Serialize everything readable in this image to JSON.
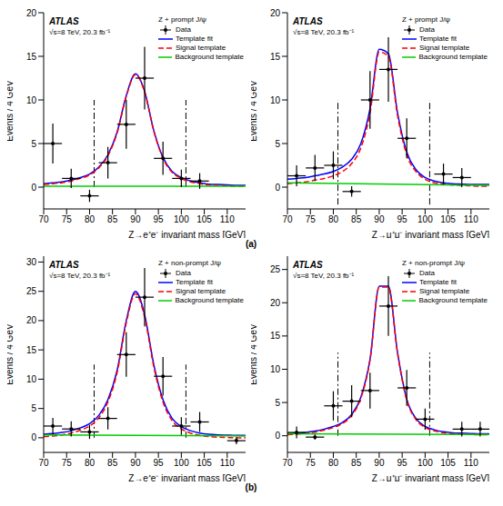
{
  "panel_labels": [
    "(a)",
    "(b)"
  ],
  "chart_data": [
    {
      "type": "line",
      "title": "Z + prompt J/ψ",
      "annotations": [
        "ATLAS",
        "√s=8 TeV, 20.3 fb⁻¹"
      ],
      "x_label": "Z→e⁺e⁻ invariant mass [GeV]",
      "y_label": "Events / 4 GeV",
      "xlim": [
        70,
        114
      ],
      "xticks": [
        70,
        75,
        80,
        85,
        90,
        95,
        100,
        105,
        110
      ],
      "ylim": [
        -2.5,
        20
      ],
      "yticks": [
        0,
        5,
        10,
        15,
        20
      ],
      "legend": "upper right",
      "bin_width": 4,
      "window": {
        "x": [
          81,
          101
        ],
        "y": [
          0,
          10
        ]
      },
      "series": [
        {
          "name": "Data",
          "type": "scatter",
          "color": "#000000",
          "marker": "circle",
          "x": [
            72,
            76,
            80,
            84,
            88,
            92,
            96,
            100,
            104
          ],
          "values": [
            5,
            1,
            -1,
            2.8,
            7.2,
            12.5,
            3.3,
            1,
            0.7
          ],
          "errors": [
            2.3,
            1.1,
            0.7,
            1.8,
            2.8,
            3.6,
            1.9,
            1,
            0.9
          ]
        },
        {
          "name": "Template fit",
          "type": "line",
          "color": "#0000ff",
          "line_style": "solid",
          "x": [
            70,
            72,
            74,
            76,
            78,
            80,
            82,
            84,
            86,
            88,
            90,
            92,
            94,
            96,
            98,
            100,
            102,
            104,
            106,
            108,
            110,
            112,
            114
          ],
          "values": [
            0.4,
            0.5,
            0.6,
            0.8,
            1.1,
            1.5,
            2.3,
            3.7,
            6.3,
            10.5,
            13,
            11,
            6.5,
            3.4,
            1.8,
            1.1,
            0.7,
            0.5,
            0.35,
            0.3,
            0.25,
            0.2,
            0.2
          ]
        },
        {
          "name": "Signal template",
          "type": "line",
          "color": "#ff0000",
          "line_style": "dashed",
          "x": [
            70,
            72,
            74,
            76,
            78,
            80,
            82,
            84,
            86,
            88,
            90,
            92,
            94,
            96,
            98,
            100,
            102,
            104,
            106,
            108,
            110,
            112,
            114
          ],
          "values": [
            0.3,
            0.4,
            0.5,
            0.7,
            1,
            1.4,
            2.2,
            3.6,
            6.2,
            10.4,
            12.9,
            10.9,
            6.4,
            3.3,
            1.7,
            1,
            0.6,
            0.4,
            0.25,
            0.2,
            0.15,
            0.1,
            0.1
          ]
        },
        {
          "name": "Background template",
          "type": "line",
          "color": "#00cc00",
          "line_style": "solid",
          "x": [
            70,
            114
          ],
          "values": [
            0.1,
            0.1
          ]
        }
      ]
    },
    {
      "type": "line",
      "title": "Z + prompt J/ψ",
      "annotations": [
        "ATLAS",
        "√s=8 TeV, 20.3 fb⁻¹"
      ],
      "x_label": "Z→μ⁺μ⁻ invariant mass [GeV]",
      "y_label": "Events / 4 GeV",
      "xlim": [
        70,
        114
      ],
      "xticks": [
        70,
        75,
        80,
        85,
        90,
        95,
        100,
        105,
        110
      ],
      "ylim": [
        -2.5,
        20
      ],
      "yticks": [
        0,
        5,
        10,
        15,
        20
      ],
      "legend": "upper right",
      "bin_width": 4,
      "window": {
        "x": [
          81,
          101
        ],
        "y": [
          -2,
          10
        ]
      },
      "series": [
        {
          "name": "Data",
          "type": "scatter",
          "color": "#000000",
          "marker": "circle",
          "x": [
            72,
            76,
            80,
            84,
            88,
            92,
            96,
            104,
            108
          ],
          "values": [
            1.3,
            2.2,
            2.5,
            -0.5,
            10,
            13.5,
            5.6,
            1.5,
            1.1
          ],
          "errors": [
            1.2,
            1.5,
            1.6,
            0.6,
            3.3,
            3.7,
            2.3,
            1.2,
            1.1
          ]
        },
        {
          "name": "Template fit",
          "type": "line",
          "color": "#0000ff",
          "line_style": "solid",
          "x": [
            70,
            72,
            74,
            76,
            78,
            80,
            82,
            84,
            86,
            88,
            90,
            92,
            94,
            96,
            98,
            100,
            102,
            104,
            106,
            108,
            110,
            112,
            114
          ],
          "values": [
            0.9,
            1,
            1.1,
            1.3,
            1.5,
            1.8,
            2.3,
            3.2,
            5,
            9,
            15.8,
            15.3,
            8.5,
            4,
            2,
            1.1,
            0.7,
            0.5,
            0.4,
            0.35,
            0.3,
            0.3,
            0.3
          ]
        },
        {
          "name": "Signal template",
          "type": "line",
          "color": "#ff0000",
          "line_style": "dashed",
          "x": [
            70,
            72,
            74,
            76,
            78,
            80,
            82,
            84,
            86,
            88,
            90,
            92,
            94,
            96,
            98,
            100,
            102,
            104,
            106,
            108,
            110,
            112,
            114
          ],
          "values": [
            0.4,
            0.5,
            0.6,
            0.8,
            1,
            1.3,
            1.8,
            2.7,
            4.5,
            8.5,
            15.5,
            15,
            8.2,
            3.7,
            1.8,
            0.9,
            0.5,
            0.35,
            0.25,
            0.2,
            0.15,
            0.1,
            0.1
          ]
        },
        {
          "name": "Background template",
          "type": "line",
          "color": "#00cc00",
          "line_style": "solid",
          "x": [
            70,
            114
          ],
          "values": [
            0.5,
            0.2
          ]
        }
      ]
    },
    {
      "type": "line",
      "title": "Z + non-prompt J/ψ",
      "annotations": [
        "ATLAS",
        "√s=8 TeV, 20.3 fb⁻¹"
      ],
      "x_label": "Z→e⁺e⁻ invariant mass [GeV]",
      "y_label": "Events / 4 GeV",
      "xlim": [
        70,
        114
      ],
      "xticks": [
        70,
        75,
        80,
        85,
        90,
        95,
        100,
        105,
        110
      ],
      "ylim": [
        -2.5,
        31
      ],
      "yticks": [
        0,
        5,
        10,
        15,
        20,
        25,
        30
      ],
      "legend": "upper right",
      "bin_width": 4,
      "window": {
        "x": [
          81,
          101
        ],
        "y": [
          0,
          12.5
        ]
      },
      "series": [
        {
          "name": "Data",
          "type": "scatter",
          "color": "#000000",
          "marker": "circle",
          "x": [
            72,
            76,
            80,
            84,
            88,
            92,
            96,
            100,
            104,
            112
          ],
          "values": [
            2,
            1.5,
            1,
            3.3,
            14.2,
            24,
            10.5,
            2,
            2.7,
            -0.5
          ],
          "errors": [
            1.4,
            1.3,
            1.2,
            1.9,
            3.8,
            5,
            3.3,
            1.5,
            1.7,
            0.6
          ]
        },
        {
          "name": "Template fit",
          "type": "line",
          "color": "#0000ff",
          "line_style": "solid",
          "x": [
            70,
            72,
            74,
            76,
            78,
            80,
            82,
            84,
            86,
            88,
            90,
            92,
            94,
            96,
            98,
            100,
            102,
            104,
            106,
            108,
            110,
            112,
            114
          ],
          "values": [
            0.6,
            0.7,
            0.9,
            1.2,
            1.7,
            2.4,
            3.8,
            6.5,
            11.5,
            20,
            25,
            21,
            12.5,
            6.5,
            3.3,
            1.9,
            1.2,
            0.8,
            0.6,
            0.5,
            0.45,
            0.4,
            0.4
          ]
        },
        {
          "name": "Signal template",
          "type": "line",
          "color": "#ff0000",
          "line_style": "dashed",
          "x": [
            70,
            72,
            74,
            76,
            78,
            80,
            82,
            84,
            86,
            88,
            90,
            92,
            94,
            96,
            98,
            100,
            102,
            104,
            106,
            108,
            110,
            112,
            114
          ],
          "values": [
            0.2,
            0.3,
            0.5,
            0.8,
            1.3,
            2,
            3.4,
            6.1,
            11.1,
            19.6,
            24.6,
            20.6,
            12.1,
            6.1,
            2.9,
            1.5,
            0.8,
            0.4,
            0.2,
            0.1,
            0.05,
            0,
            0
          ]
        },
        {
          "name": "Background template",
          "type": "line",
          "color": "#00cc00",
          "line_style": "solid",
          "x": [
            70,
            114
          ],
          "values": [
            0.5,
            0.3
          ]
        }
      ]
    },
    {
      "type": "line",
      "title": "Z + non-prompt J/ψ",
      "annotations": [
        "ATLAS",
        "√s=8 TeV, 20.3 fb⁻¹"
      ],
      "x_label": "Z→μ⁺μ⁻ invariant mass [GeV]",
      "y_label": "Events / 4 GeV",
      "xlim": [
        70,
        114
      ],
      "xticks": [
        70,
        75,
        80,
        85,
        90,
        95,
        100,
        105,
        110
      ],
      "ylim": [
        -2.5,
        27
      ],
      "yticks": [
        0,
        5,
        10,
        15,
        20,
        25
      ],
      "legend": "upper right",
      "bin_width": 4,
      "window": {
        "x": [
          81,
          101
        ],
        "y": [
          0,
          12.5
        ]
      },
      "series": [
        {
          "name": "Data",
          "type": "scatter",
          "color": "#000000",
          "marker": "circle",
          "x": [
            72,
            76,
            80,
            84,
            88,
            92,
            96,
            100,
            108,
            112
          ],
          "values": [
            0.5,
            -0.2,
            4.5,
            5.2,
            6.8,
            19.5,
            7.2,
            2.5,
            1,
            1
          ],
          "errors": [
            0.9,
            0.4,
            2.2,
            2.4,
            2.7,
            4.5,
            2.7,
            1.6,
            1.1,
            1.1
          ]
        },
        {
          "name": "Template fit",
          "type": "line",
          "color": "#0000ff",
          "line_style": "solid",
          "x": [
            70,
            72,
            74,
            76,
            78,
            80,
            82,
            84,
            86,
            88,
            90,
            92,
            94,
            96,
            98,
            100,
            102,
            104,
            106,
            108,
            110,
            112,
            114
          ],
          "values": [
            0.3,
            0.4,
            0.5,
            0.7,
            1,
            1.4,
            2,
            3.2,
            5.8,
            11.5,
            22.5,
            22.5,
            12.5,
            5.5,
            2.6,
            1.4,
            0.9,
            0.6,
            0.45,
            0.4,
            0.35,
            0.3,
            0.3
          ]
        },
        {
          "name": "Signal template",
          "type": "line",
          "color": "#ff0000",
          "line_style": "dashed",
          "x": [
            70,
            72,
            74,
            76,
            78,
            80,
            82,
            84,
            86,
            88,
            90,
            92,
            94,
            96,
            98,
            100,
            102,
            104,
            106,
            108,
            110,
            112,
            114
          ],
          "values": [
            0.15,
            0.25,
            0.35,
            0.55,
            0.85,
            1.25,
            1.85,
            3.05,
            5.65,
            11.35,
            22.35,
            22.35,
            12.35,
            5.35,
            2.45,
            1.25,
            0.75,
            0.45,
            0.3,
            0.25,
            0.2,
            0.15,
            0.15
          ]
        },
        {
          "name": "Background template",
          "type": "line",
          "color": "#00cc00",
          "line_style": "solid",
          "x": [
            70,
            114
          ],
          "values": [
            0.3,
            0.2
          ]
        }
      ]
    }
  ]
}
